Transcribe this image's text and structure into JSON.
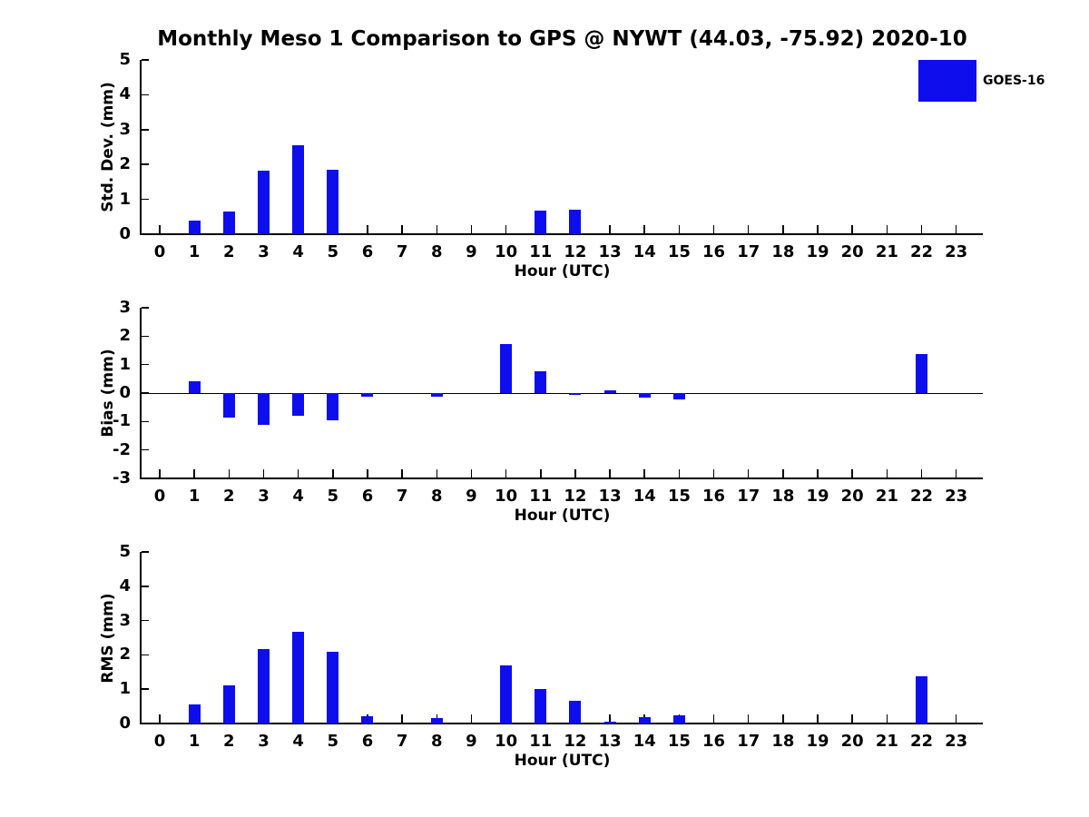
{
  "title": "Monthly Meso 1 Comparison to GPS @ NYWT (44.03, -75.92) 2020-10",
  "legend": {
    "label": "GOES-16",
    "swatch_color": "#0d0dee",
    "position": "top-right"
  },
  "colors": {
    "bar": "#0d0dee",
    "axis": "#000000",
    "text": "#000000",
    "background": "#ffffff"
  },
  "chart_data": [
    {
      "type": "bar",
      "title": "",
      "ylabel": "Std. Dev. (mm)",
      "xlabel": "Hour (UTC)",
      "categories": [
        "0",
        "1",
        "2",
        "3",
        "4",
        "5",
        "6",
        "7",
        "8",
        "9",
        "10",
        "11",
        "12",
        "13",
        "14",
        "15",
        "16",
        "17",
        "18",
        "19",
        "20",
        "21",
        "22",
        "23"
      ],
      "series": [
        {
          "name": "GOES-16",
          "color": "#0d0dee",
          "values": [
            0,
            0.38,
            0.66,
            1.83,
            2.56,
            1.86,
            0,
            0,
            0,
            0,
            0,
            0.68,
            0.7,
            0,
            0,
            0,
            0,
            0,
            0,
            0,
            0,
            0,
            0,
            0
          ]
        }
      ],
      "ylim": [
        0,
        5
      ],
      "yticks": [
        0,
        1,
        2,
        3,
        4,
        5
      ],
      "grid": false,
      "legend_position": "top-right"
    },
    {
      "type": "bar",
      "title": "",
      "ylabel": "Bias (mm)",
      "xlabel": "Hour (UTC)",
      "categories": [
        "0",
        "1",
        "2",
        "3",
        "4",
        "5",
        "6",
        "7",
        "8",
        "9",
        "10",
        "11",
        "12",
        "13",
        "14",
        "15",
        "16",
        "17",
        "18",
        "19",
        "20",
        "21",
        "22",
        "23"
      ],
      "series": [
        {
          "name": "GOES-16",
          "color": "#0d0dee",
          "values": [
            0,
            0.42,
            -0.87,
            -1.13,
            -0.8,
            -0.95,
            -0.13,
            0,
            -0.12,
            0,
            1.71,
            0.77,
            -0.06,
            0.09,
            -0.17,
            -0.21,
            0,
            0,
            0,
            0,
            0,
            0,
            1.37,
            0
          ]
        }
      ],
      "ylim": [
        -3,
        3
      ],
      "yticks": [
        -3,
        -2,
        -1,
        0,
        1,
        2,
        3
      ],
      "grid": false,
      "zero_line": true
    },
    {
      "type": "bar",
      "title": "",
      "ylabel": "RMS (mm)",
      "xlabel": "Hour (UTC)",
      "categories": [
        "0",
        "1",
        "2",
        "3",
        "4",
        "5",
        "6",
        "7",
        "8",
        "9",
        "10",
        "11",
        "12",
        "13",
        "14",
        "15",
        "16",
        "17",
        "18",
        "19",
        "20",
        "21",
        "22",
        "23"
      ],
      "series": [
        {
          "name": "GOES-16",
          "color": "#0d0dee",
          "values": [
            0,
            0.55,
            1.12,
            2.16,
            2.68,
            2.1,
            0.21,
            0,
            0.15,
            0,
            1.7,
            1.0,
            0.66,
            0.06,
            0.18,
            0.25,
            0,
            0,
            0,
            0,
            0,
            0,
            1.37,
            0
          ]
        }
      ],
      "ylim": [
        0,
        5
      ],
      "yticks": [
        0,
        1,
        2,
        3,
        4,
        5
      ],
      "grid": false
    }
  ]
}
